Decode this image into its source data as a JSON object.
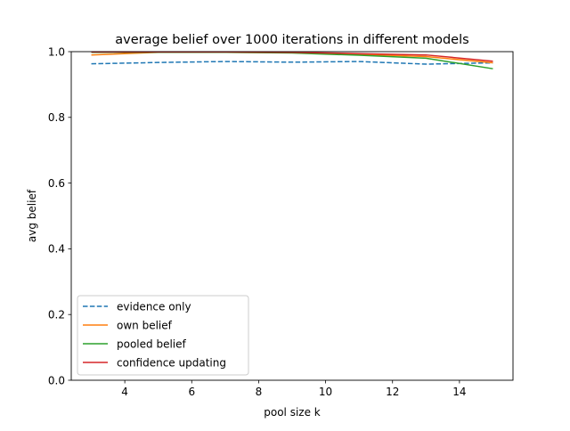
{
  "chart_data": {
    "type": "line",
    "title": "average belief over 1000 iterations in different models",
    "xlabel": "pool size k",
    "ylabel": "avg belief",
    "xlim": [
      2.4,
      15.6
    ],
    "ylim": [
      0.0,
      1.0
    ],
    "xticks": [
      4,
      6,
      8,
      10,
      12,
      14
    ],
    "yticks": [
      0.0,
      0.2,
      0.4,
      0.6,
      0.8,
      1.0
    ],
    "xtick_labels": [
      "4",
      "6",
      "8",
      "10",
      "12",
      "14"
    ],
    "ytick_labels": [
      "0.0",
      "0.2",
      "0.4",
      "0.6",
      "0.8",
      "1.0"
    ],
    "grid": false,
    "legend_position": "lower-left",
    "x": [
      3,
      5,
      7,
      9,
      11,
      13,
      15
    ],
    "series": [
      {
        "name": "evidence only",
        "color": "#1f77b4",
        "dashed": true,
        "values": [
          0.963,
          0.967,
          0.97,
          0.968,
          0.97,
          0.962,
          0.966
        ]
      },
      {
        "name": "own belief",
        "color": "#ff7f0e",
        "dashed": false,
        "values": [
          0.99,
          0.998,
          0.998,
          0.997,
          0.992,
          0.985,
          0.966
        ]
      },
      {
        "name": "pooled belief",
        "color": "#2ca02c",
        "dashed": false,
        "values": [
          0.998,
          0.998,
          0.998,
          0.996,
          0.989,
          0.98,
          0.948
        ]
      },
      {
        "name": "confidence updating",
        "color": "#d62728",
        "dashed": false,
        "values": [
          0.999,
          0.999,
          0.999,
          0.998,
          0.994,
          0.99,
          0.971
        ]
      }
    ]
  }
}
